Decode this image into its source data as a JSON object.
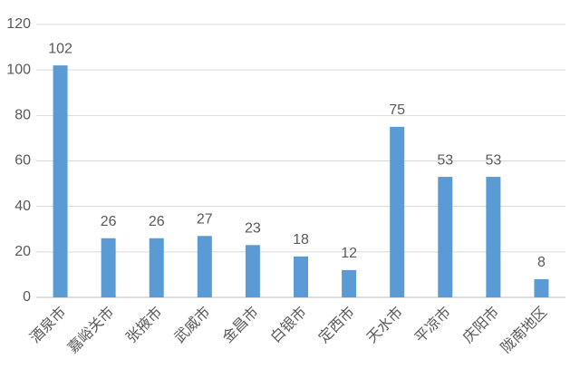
{
  "chart_data": {
    "type": "bar",
    "categories": [
      "酒泉市",
      "嘉峪关市",
      "张掖市",
      "武威市",
      "金昌市",
      "白银市",
      "定西市",
      "天水市",
      "平凉市",
      "庆阳市",
      "陇南地区"
    ],
    "values": [
      102,
      26,
      26,
      27,
      23,
      18,
      12,
      75,
      53,
      53,
      8
    ],
    "color": "#5b9bd5",
    "ylim": [
      0,
      120
    ],
    "yticks": [
      0,
      20,
      40,
      60,
      80,
      100,
      120
    ],
    "grid": true
  }
}
